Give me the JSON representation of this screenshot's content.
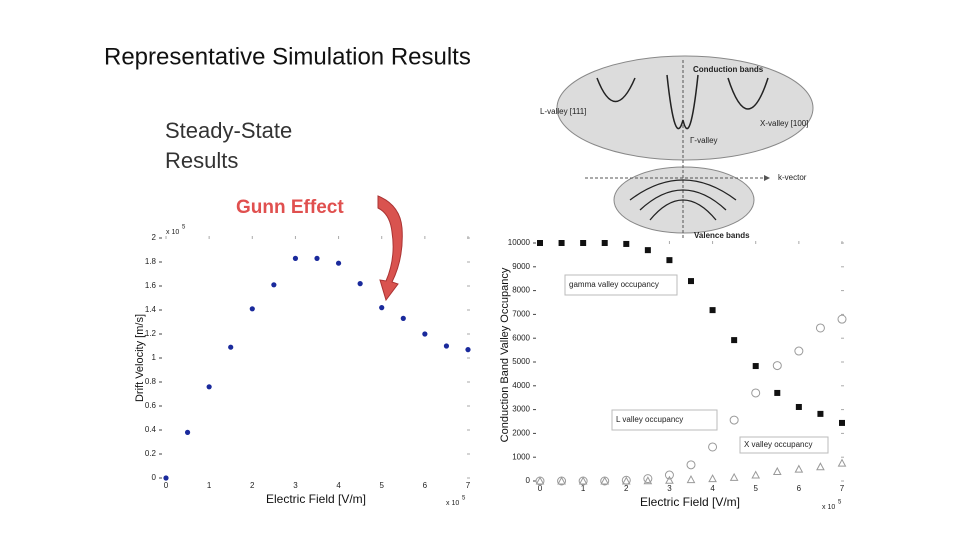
{
  "slide": {
    "title": "Representative Simulation Results",
    "subtitle": [
      "Steady-State",
      "Results"
    ],
    "callout": "Gunn Effect"
  },
  "diagram": {
    "conduction": "Conduction bands",
    "l_valley": "L-valley [111]",
    "x_valley": "X-valley [100]",
    "gamma_valley": "Γ-valley",
    "k_vector": "k-vector",
    "valence": "Valence bands"
  },
  "chart_data": [
    {
      "type": "scatter",
      "xlabel": "Electric Field [V/m]",
      "ylabel": "Drift Velocity [m/s]",
      "x_multiplier": "x 10",
      "x_exponent": "5",
      "y_multiplier": "x 10",
      "y_exponent": "5",
      "x": [
        0,
        0.5,
        1,
        1.5,
        2,
        2.5,
        3,
        3.5,
        4,
        4.5,
        5,
        5.5,
        6,
        6.5,
        7
      ],
      "series": [
        {
          "color": "#1a2a9c",
          "marker": "circle",
          "values": [
            0,
            0.38,
            0.76,
            1.09,
            1.41,
            1.61,
            1.83,
            1.83,
            1.79,
            1.62,
            1.42,
            1.33,
            1.2,
            1.1,
            1.07
          ]
        }
      ],
      "xlim": [
        0,
        7
      ],
      "ylim": [
        0,
        2
      ],
      "xticks": [
        0,
        1,
        2,
        3,
        4,
        5,
        6,
        7
      ],
      "yticks": [
        0,
        0.2,
        0.4,
        0.6,
        0.8,
        1,
        1.2,
        1.4,
        1.6,
        1.8,
        2
      ]
    },
    {
      "type": "scatter",
      "xlabel": "Electric Field [V/m]",
      "ylabel": "Conduction Band Valley Occupancy",
      "x_multiplier": "x 10",
      "x_exponent": "5",
      "x": [
        0,
        0.5,
        1,
        1.5,
        2,
        2.5,
        3,
        3.5,
        4,
        4.5,
        5,
        5.5,
        6,
        6.5,
        7
      ],
      "series": [
        {
          "color": "#111111",
          "marker": "square",
          "values": [
            10000,
            10000,
            10000,
            10000,
            9960,
            9700,
            9280,
            8400,
            7180,
            5920,
            4830,
            3700,
            3110,
            2820,
            2440
          ]
        },
        {
          "color": "#999999",
          "marker": "open-circle",
          "values": [
            0,
            0,
            0,
            0,
            30,
            100,
            250,
            680,
            1430,
            2560,
            3700,
            4850,
            5460,
            6430,
            6800
          ]
        },
        {
          "color": "#999999",
          "marker": "triangle",
          "values": [
            0,
            0,
            0,
            0,
            0,
            10,
            30,
            60,
            100,
            150,
            250,
            400,
            500,
            600,
            750
          ]
        }
      ],
      "annotations": [
        "gamma valley occupancy",
        "L valley occupancy",
        "X valley occupancy"
      ],
      "xlim": [
        0,
        7
      ],
      "ylim": [
        0,
        10000
      ],
      "xticks": [
        0,
        1,
        2,
        3,
        4,
        5,
        6,
        7
      ],
      "yticks": [
        0,
        1000,
        2000,
        3000,
        4000,
        5000,
        6000,
        7000,
        8000,
        9000,
        10000
      ]
    }
  ]
}
